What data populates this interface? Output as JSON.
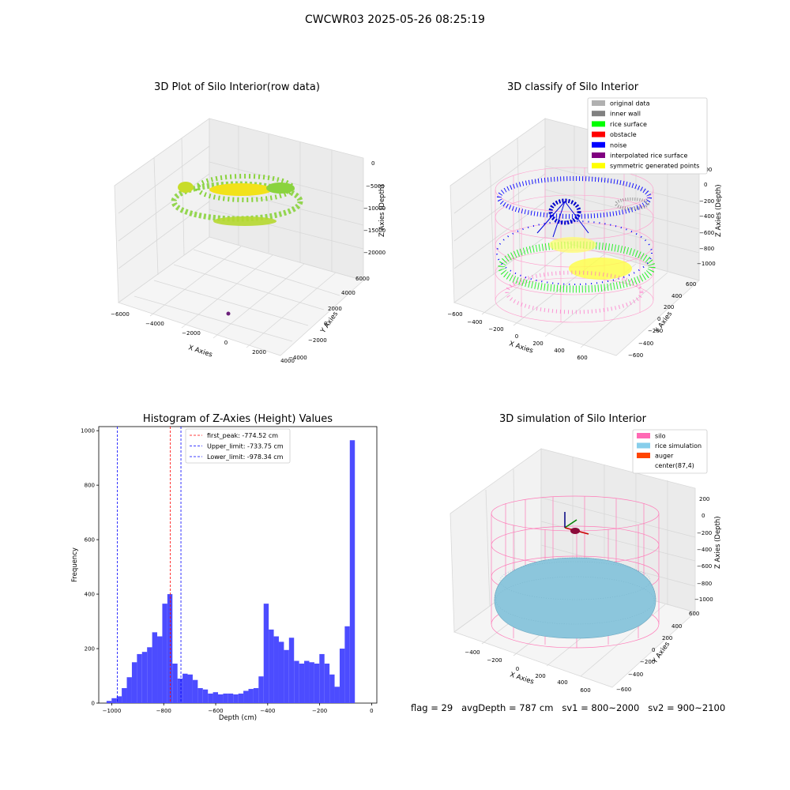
{
  "figure": {
    "suptitle": "CWCWR03 2025-05-26 08:25:19",
    "status_line": "flag = 29   avgDepth = 787 cm   sv1 = 800~2000   sv2 = 900~2100"
  },
  "chart_data": [
    {
      "type": "scatter3d",
      "title": "3D Plot of Silo Interior(row data)",
      "xlabel": "X Axies",
      "ylabel": "Y Axies",
      "zlabel": "Z Axies (Depth)",
      "xticks": [
        "−6000",
        "−4000",
        "−2000",
        "0",
        "2000",
        "4000"
      ],
      "yticks": [
        "−4000",
        "−2000",
        "0",
        "2000",
        "4000",
        "6000"
      ],
      "zticks": [
        "0",
        "−5000",
        "−10000",
        "−15000",
        "−20000"
      ],
      "xlim": [
        -6000,
        4000
      ],
      "ylim": [
        -4000,
        6000
      ],
      "zlim": [
        -22000,
        0
      ],
      "colors": {
        "points_yellow": "#f2e21a",
        "points_green": "#8ad33e",
        "outlier": "#6b1f7a"
      },
      "grid": true
    },
    {
      "type": "scatter3d",
      "title": "3D classify of Silo Interior",
      "xlabel": "X Axies",
      "ylabel": "Y Axies",
      "zlabel": "Z Axies (Depth)",
      "xticks": [
        "−600",
        "−400",
        "−200",
        "0",
        "200",
        "400",
        "600"
      ],
      "yticks": [
        "−600",
        "−400",
        "−200",
        "0",
        "200",
        "400",
        "600"
      ],
      "zticks": [
        "200",
        "0",
        "−200",
        "−400",
        "−600",
        "−800",
        "−1000"
      ],
      "legend": [
        {
          "label": "original data",
          "color": "#b0b0b0"
        },
        {
          "label": "inner wall",
          "color": "#808080"
        },
        {
          "label": "rice surface",
          "color": "#00ff00"
        },
        {
          "label": "obstacle",
          "color": "#ff0000"
        },
        {
          "label": "noise",
          "color": "#0000ff"
        },
        {
          "label": "interpolated rice surface",
          "color": "#800080"
        },
        {
          "label": "symmetric generated points",
          "color": "#ffff00"
        }
      ],
      "legend_position": "upper-right",
      "grid": true
    },
    {
      "type": "bar",
      "title": "Histogram of Z-Axies (Height) Values",
      "xlabel": "Depth (cm)",
      "ylabel": "Frequency",
      "xlim": [
        -1050,
        20
      ],
      "ylim": [
        0,
        1015
      ],
      "xticks": [
        -1000,
        -800,
        -600,
        -400,
        -200,
        0
      ],
      "xtick_labels": [
        "−1000",
        "−800",
        "−600",
        "−400",
        "−200",
        "0"
      ],
      "yticks": [
        0,
        200,
        400,
        600,
        800,
        1000
      ],
      "yticks_labels": [
        "0",
        "200",
        "400",
        "600",
        "800",
        "1000"
      ],
      "bin_start": -1020,
      "bin_width": 19.5,
      "values": [
        8,
        18,
        25,
        55,
        95,
        150,
        180,
        188,
        205,
        260,
        245,
        365,
        400,
        145,
        90,
        108,
        105,
        85,
        55,
        50,
        35,
        40,
        32,
        35,
        35,
        32,
        35,
        45,
        52,
        55,
        98,
        365,
        270,
        245,
        225,
        195,
        240,
        155,
        145,
        155,
        150,
        145,
        180,
        145,
        105,
        60,
        200,
        282,
        965
      ],
      "bar_color": "#4c4cff",
      "vlines": [
        {
          "label": "first_peak: -774.52 cm",
          "x": -774.52,
          "color": "#ff0000"
        },
        {
          "label": "Upper_limit: -733.75 cm",
          "x": -733.75,
          "color": "#0000ff"
        },
        {
          "label": "Lower_limit: -978.34 cm",
          "x": -978.34,
          "color": "#0000ff"
        }
      ],
      "legend_position": "top-center"
    },
    {
      "type": "surface3d",
      "title": "3D simulation of Silo Interior",
      "xlabel": "X Axies",
      "ylabel": "Y Axies",
      "zlabel": "Z Axies (Depth)",
      "xticks": [
        "−400",
        "−200",
        "0",
        "200",
        "400",
        "600"
      ],
      "yticks": [
        "−600",
        "−400",
        "−200",
        "0",
        "200",
        "400",
        "600"
      ],
      "zticks": [
        "200",
        "0",
        "−200",
        "−400",
        "−600",
        "−800",
        "−1000"
      ],
      "legend": [
        {
          "label": "silo",
          "color": "#ff69b4"
        },
        {
          "label": "rice simulation",
          "color": "#87ceeb"
        },
        {
          "label": "auger",
          "color": "#ff4500"
        },
        {
          "label": "center(87,4)",
          "color": ""
        }
      ],
      "legend_position": "upper-right",
      "grid": true
    }
  ]
}
